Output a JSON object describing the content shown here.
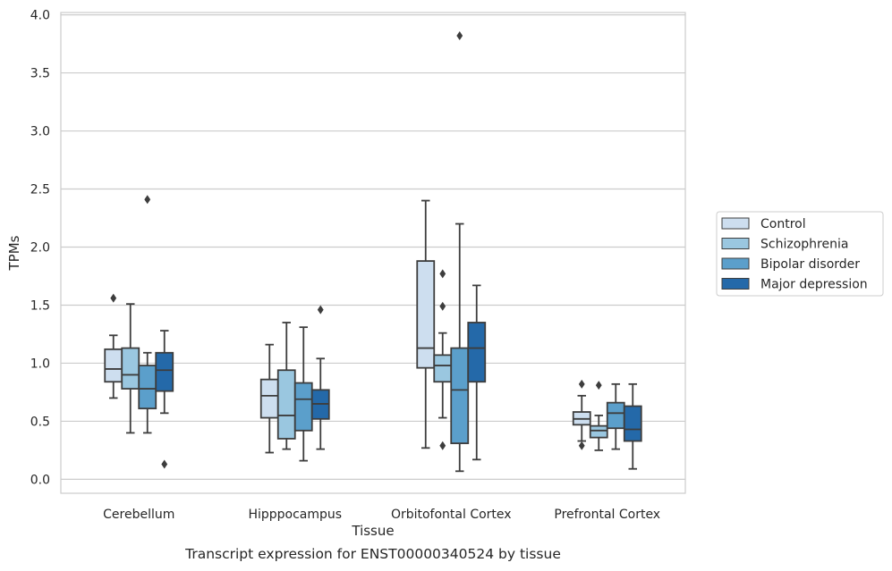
{
  "chart_data": {
    "type": "box",
    "xlabel": "Tissue",
    "ylabel": "TPMs",
    "caption": "Transcript expression for ENST00000340524 by tissue",
    "ylim": [
      -0.12,
      4.02
    ],
    "yticks": [
      "0.0",
      "0.5",
      "1.0",
      "1.5",
      "2.0",
      "2.5",
      "3.0",
      "3.5",
      "4.0"
    ],
    "grid": "horizontal",
    "legend_position": "right",
    "categories": [
      "Cerebellum",
      "Hipppocampus",
      "Orbitofontal Cortex",
      "Prefrontal Cortex"
    ],
    "series": [
      {
        "name": "Control",
        "color": "#cddeef",
        "boxes": [
          {
            "whislo": 0.7,
            "q1": 0.84,
            "med": 0.95,
            "q3": 1.12,
            "whishi": 1.24,
            "fliers": [
              1.56
            ]
          },
          {
            "whislo": 0.23,
            "q1": 0.53,
            "med": 0.72,
            "q3": 0.86,
            "whishi": 1.16,
            "fliers": []
          },
          {
            "whislo": 0.27,
            "q1": 0.96,
            "med": 1.13,
            "q3": 1.88,
            "whishi": 2.4,
            "fliers": []
          },
          {
            "whislo": 0.33,
            "q1": 0.47,
            "med": 0.52,
            "q3": 0.58,
            "whishi": 0.72,
            "fliers": [
              0.82,
              0.29
            ]
          }
        ]
      },
      {
        "name": "Schizophrenia",
        "color": "#9ac7e0",
        "boxes": [
          {
            "whislo": 0.4,
            "q1": 0.78,
            "med": 0.9,
            "q3": 1.13,
            "whishi": 1.51,
            "fliers": []
          },
          {
            "whislo": 0.26,
            "q1": 0.35,
            "med": 0.55,
            "q3": 0.94,
            "whishi": 1.35,
            "fliers": []
          },
          {
            "whislo": 0.53,
            "q1": 0.84,
            "med": 0.98,
            "q3": 1.07,
            "whishi": 1.26,
            "fliers": [
              1.77,
              1.49,
              0.29
            ]
          },
          {
            "whislo": 0.25,
            "q1": 0.36,
            "med": 0.42,
            "q3": 0.46,
            "whishi": 0.55,
            "fliers": [
              0.81
            ]
          }
        ]
      },
      {
        "name": "Bipolar disorder",
        "color": "#5b9fcb",
        "boxes": [
          {
            "whislo": 0.4,
            "q1": 0.61,
            "med": 0.78,
            "q3": 0.98,
            "whishi": 1.09,
            "fliers": [
              2.41
            ]
          },
          {
            "whislo": 0.16,
            "q1": 0.42,
            "med": 0.69,
            "q3": 0.83,
            "whishi": 1.31,
            "fliers": []
          },
          {
            "whislo": 0.07,
            "q1": 0.31,
            "med": 0.77,
            "q3": 1.13,
            "whishi": 2.2,
            "fliers": [
              3.82
            ]
          },
          {
            "whislo": 0.26,
            "q1": 0.44,
            "med": 0.57,
            "q3": 0.66,
            "whishi": 0.82,
            "fliers": []
          }
        ]
      },
      {
        "name": "Major depression",
        "color": "#2469a9",
        "boxes": [
          {
            "whislo": 0.57,
            "q1": 0.76,
            "med": 0.94,
            "q3": 1.09,
            "whishi": 1.28,
            "fliers": [
              0.13
            ]
          },
          {
            "whislo": 0.26,
            "q1": 0.52,
            "med": 0.65,
            "q3": 0.77,
            "whishi": 1.04,
            "fliers": [
              1.46
            ]
          },
          {
            "whislo": 0.17,
            "q1": 0.84,
            "med": 1.13,
            "q3": 1.35,
            "whishi": 1.67,
            "fliers": []
          },
          {
            "whislo": 0.09,
            "q1": 0.33,
            "med": 0.43,
            "q3": 0.63,
            "whishi": 0.82,
            "fliers": []
          }
        ]
      }
    ]
  }
}
